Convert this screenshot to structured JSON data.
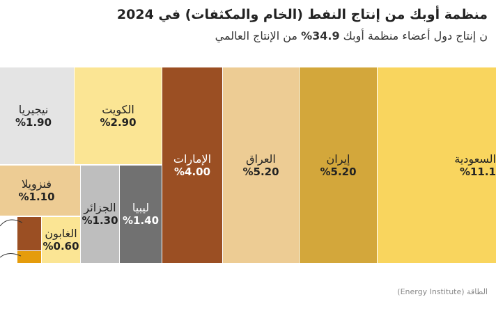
{
  "title": "منظمة أوبك من إنتاج النفط (الخام والمكثفات) في 2024",
  "subtitle_pre": "ن إنتاج دول أعضاء منظمة أوبك ",
  "subtitle_bold": "34.9%",
  "subtitle_post": " من الإنتاج العالمي",
  "source": "الطاقة (Energy Institute)",
  "chart_data": {
    "type": "treemap",
    "unit": "%",
    "items": [
      {
        "name": "السعودية",
        "label": "%11.1",
        "value": 11.1,
        "color": "#f9d55e"
      },
      {
        "name": "إيران",
        "label": "%5.20",
        "value": 5.2,
        "color": "#d3a73b"
      },
      {
        "name": "العراق",
        "label": "%5.20",
        "value": 5.2,
        "color": "#edcc94"
      },
      {
        "name": "الإمارات",
        "label": "%4.00",
        "value": 4.0,
        "color": "#9b4f23"
      },
      {
        "name": "الكويت",
        "label": "%2.90",
        "value": 2.9,
        "color": "#fbe594"
      },
      {
        "name": "نيجيريا",
        "label": "%1.90",
        "value": 1.9,
        "color": "#e4e4e4"
      },
      {
        "name": "ليبيا",
        "label": "%1.40",
        "value": 1.4,
        "color": "#717171"
      },
      {
        "name": "الجزائر",
        "label": "%1.30",
        "value": 1.3,
        "color": "#bebebe"
      },
      {
        "name": "فنزويلا",
        "label": "%1.10",
        "value": 1.1,
        "color": "#edcc94"
      },
      {
        "name": "الغابون",
        "label": "%0.60",
        "value": 0.6,
        "color": "#fbe594"
      },
      {
        "name": "",
        "label": "",
        "color": "#9b4f23"
      },
      {
        "name": "",
        "label": "",
        "color": "#e59c0c"
      }
    ]
  }
}
